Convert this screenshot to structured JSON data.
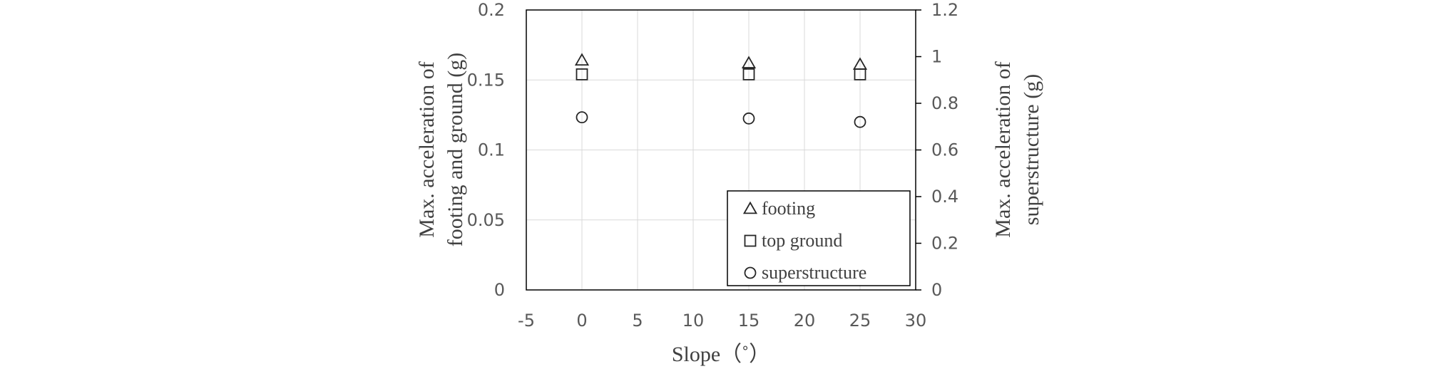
{
  "chart_data": {
    "type": "scatter",
    "xlabel": "Slope（˚）",
    "ylabel_left": [
      "Max. acceleration of",
      "footing and ground (g)"
    ],
    "ylabel_right": [
      "Max. acceleration of",
      "superstructure (g)"
    ],
    "xlim": [
      -5,
      30
    ],
    "x_ticks": [
      -5,
      0,
      5,
      10,
      15,
      20,
      25,
      30
    ],
    "ylim_left": [
      0,
      0.2
    ],
    "y_left_ticks": [
      0,
      0.05,
      0.1,
      0.15,
      0.2
    ],
    "y_left_tick_labels": [
      "0",
      "0.05",
      "0.1",
      "0.15",
      "0.2"
    ],
    "ylim_right": [
      0,
      1.2
    ],
    "y_right_ticks": [
      0,
      0.2,
      0.4,
      0.6,
      0.8,
      1,
      1.2
    ],
    "y_right_tick_labels": [
      "0",
      "0.2",
      "0.4",
      "0.6",
      "0.8",
      "1",
      "1.2"
    ],
    "grid": true,
    "legend_position": "bottom-right",
    "series": [
      {
        "name": "footing",
        "marker": "triangle",
        "axis": "left",
        "points": [
          {
            "x": 0,
            "y": 0.164
          },
          {
            "x": 15,
            "y": 0.162
          },
          {
            "x": 25,
            "y": 0.161
          }
        ]
      },
      {
        "name": "top ground",
        "marker": "square",
        "axis": "left",
        "points": [
          {
            "x": 0,
            "y": 0.154
          },
          {
            "x": 15,
            "y": 0.154
          },
          {
            "x": 25,
            "y": 0.154
          }
        ]
      },
      {
        "name": "superstructure",
        "marker": "circle",
        "axis": "right",
        "points": [
          {
            "x": 0,
            "y": 0.74
          },
          {
            "x": 15,
            "y": 0.735
          },
          {
            "x": 25,
            "y": 0.72
          }
        ]
      }
    ]
  }
}
